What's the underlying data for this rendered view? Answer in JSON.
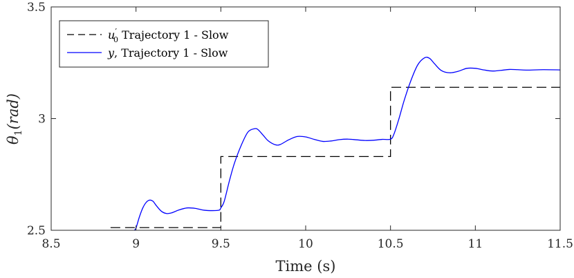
{
  "chart_data": {
    "type": "line",
    "title": "",
    "xlabel": "Time (s)",
    "ylabel_symbol": "θ",
    "ylabel_sub": "1",
    "ylabel_unit": "(rad)",
    "xlim": [
      8.5,
      11.5
    ],
    "ylim": [
      2.5,
      3.5
    ],
    "xticks": [
      8.5,
      9,
      9.5,
      10,
      10.5,
      11,
      11.5
    ],
    "xtick_labels": [
      "8.5",
      "9",
      "9.5",
      "10",
      "10.5",
      "11",
      "11.5"
    ],
    "yticks": [
      2.5,
      3,
      3.5
    ],
    "ytick_labels": [
      "2.5",
      "3",
      "3.5"
    ],
    "grid": false,
    "legend_position": "top-left",
    "series": [
      {
        "name": "u0' Trajectory 1 - Slow",
        "legend_symbol": "u",
        "legend_sub": "0",
        "legend_prime": "′",
        "legend_rest": " Trajectory 1 - Slow",
        "style": "dashed",
        "color": "#000000",
        "x": [
          8.85,
          9.5,
          9.5,
          10.5,
          10.5,
          11.5
        ],
        "y": [
          2.512,
          2.512,
          2.83,
          2.83,
          3.14,
          3.14
        ]
      },
      {
        "name": "y, Trajectory 1 - Slow",
        "legend_symbol": "y",
        "legend_rest": ", Trajectory 1 - Slow",
        "style": "solid",
        "color": "#0000ff",
        "x": [
          8.99,
          9.0,
          9.02,
          9.04,
          9.06,
          9.08,
          9.1,
          9.12,
          9.15,
          9.18,
          9.21,
          9.25,
          9.3,
          9.35,
          9.4,
          9.45,
          9.49,
          9.5,
          9.52,
          9.55,
          9.58,
          9.62,
          9.66,
          9.7,
          9.72,
          9.75,
          9.78,
          9.82,
          9.85,
          9.9,
          9.95,
          10.0,
          10.05,
          10.1,
          10.15,
          10.2,
          10.25,
          10.3,
          10.35,
          10.4,
          10.45,
          10.5,
          10.52,
          10.55,
          10.58,
          10.62,
          10.66,
          10.7,
          10.73,
          10.76,
          10.8,
          10.85,
          10.9,
          10.95,
          11.0,
          11.05,
          11.1,
          11.15,
          11.2,
          11.25,
          11.3,
          11.4,
          11.5
        ],
        "y": [
          2.5,
          2.51,
          2.56,
          2.6,
          2.625,
          2.635,
          2.63,
          2.61,
          2.585,
          2.575,
          2.578,
          2.59,
          2.6,
          2.598,
          2.59,
          2.588,
          2.59,
          2.6,
          2.63,
          2.72,
          2.8,
          2.88,
          2.94,
          2.955,
          2.95,
          2.925,
          2.9,
          2.883,
          2.884,
          2.905,
          2.92,
          2.918,
          2.907,
          2.898,
          2.9,
          2.906,
          2.908,
          2.905,
          2.902,
          2.903,
          2.907,
          2.908,
          2.93,
          3.0,
          3.08,
          3.17,
          3.24,
          3.272,
          3.27,
          3.245,
          3.215,
          3.205,
          3.212,
          3.225,
          3.225,
          3.218,
          3.213,
          3.216,
          3.22,
          3.219,
          3.217,
          3.219,
          3.218
        ]
      }
    ]
  }
}
